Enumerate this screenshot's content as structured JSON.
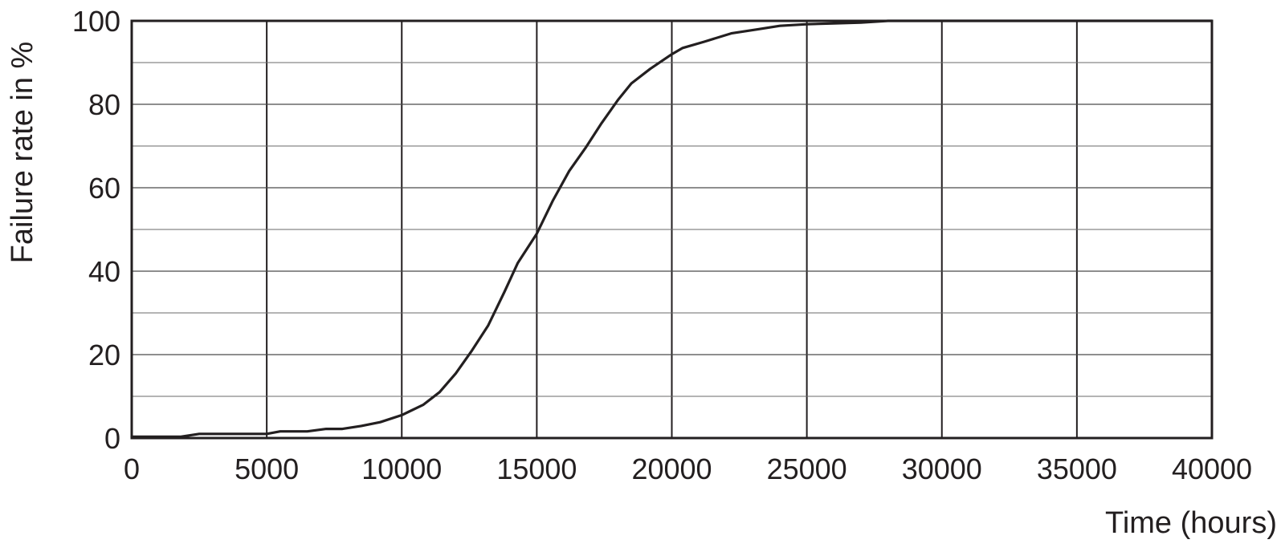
{
  "chart_data": {
    "type": "line",
    "title": "",
    "xlabel": "Time (hours)",
    "ylabel": "Failure rate in %",
    "xlim": [
      0,
      40000
    ],
    "ylim": [
      0,
      100
    ],
    "x_ticks": [
      0,
      5000,
      10000,
      15000,
      20000,
      25000,
      30000,
      35000,
      40000
    ],
    "x_tick_labels": [
      "0",
      "5000",
      "10000",
      "15000",
      "20000",
      "25000",
      "30000",
      "35000",
      "40000"
    ],
    "y_ticks": [
      0,
      20,
      40,
      60,
      80,
      100
    ],
    "y_tick_labels": [
      "0",
      "20",
      "40",
      "60",
      "80",
      "100"
    ],
    "y_minor_gridlines": [
      10,
      30,
      50,
      70,
      90
    ],
    "grid": true,
    "legend": "none",
    "series": [
      {
        "color": "#231f20",
        "x": [
          0,
          1800,
          2500,
          5000,
          5500,
          6500,
          7200,
          7800,
          8500,
          9200,
          10000,
          10800,
          11400,
          12000,
          12600,
          13200,
          13800,
          14300,
          15000,
          15600,
          16200,
          16800,
          17400,
          18000,
          18500,
          19200,
          20000,
          20400,
          21200,
          22200,
          23200,
          24000,
          25000,
          26000,
          27000,
          28000,
          30000,
          35000,
          40000
        ],
        "y": [
          0.3,
          0.3,
          1,
          1,
          1.6,
          1.6,
          2.2,
          2.2,
          2.9,
          3.8,
          5.5,
          8,
          11,
          15.5,
          21,
          27,
          35,
          42,
          49,
          57,
          64,
          69.5,
          75.5,
          81,
          85,
          88.5,
          92,
          93.5,
          95,
          97,
          98,
          98.8,
          99.2,
          99.4,
          99.6,
          100,
          100,
          100,
          100
        ]
      }
    ]
  }
}
